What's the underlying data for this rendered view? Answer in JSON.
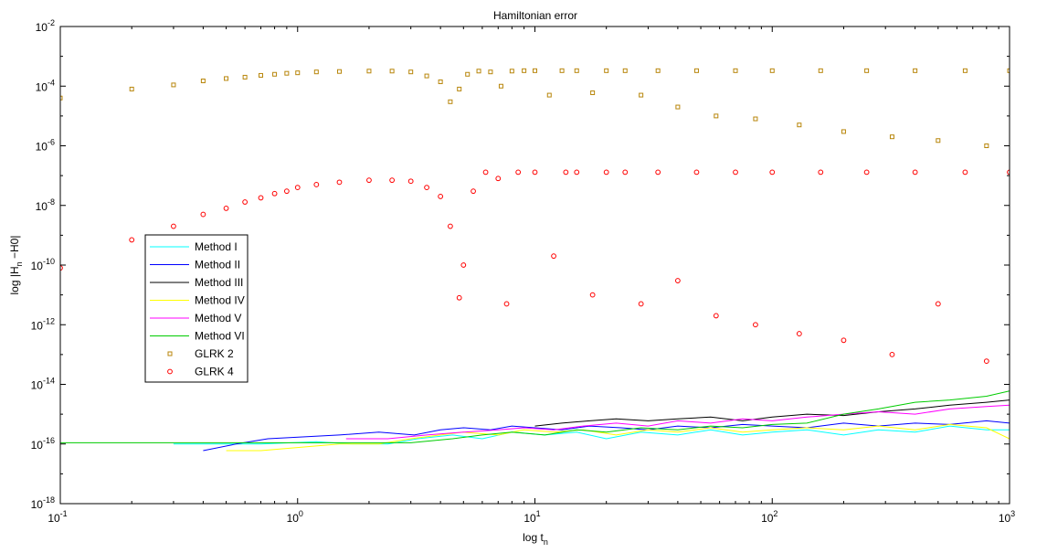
{
  "chart_data": {
    "type": "scatter",
    "title": "Hamiltonian error",
    "xlabel": {
      "base": "log t",
      "sub": "n"
    },
    "ylabel": {
      "pre": "log |H",
      "sub": "n",
      "post": " −H0|"
    },
    "xscale": "log",
    "yscale": "log",
    "xlim": [
      0.1,
      1000
    ],
    "ylim": [
      1e-18,
      0.01
    ],
    "grid": false,
    "legend_position": "left-middle",
    "x_ticks": [
      {
        "value": 0.1,
        "base": "10",
        "exp": "-1"
      },
      {
        "value": 1,
        "base": "10",
        "exp": "0"
      },
      {
        "value": 10,
        "base": "10",
        "exp": "1"
      },
      {
        "value": 100,
        "base": "10",
        "exp": "2"
      },
      {
        "value": 1000,
        "base": "10",
        "exp": "3"
      }
    ],
    "y_ticks": [
      {
        "value": 1e-18,
        "base": "10",
        "exp": "-18"
      },
      {
        "value": 1e-16,
        "base": "10",
        "exp": "-16"
      },
      {
        "value": 1e-14,
        "base": "10",
        "exp": "-14"
      },
      {
        "value": 1e-12,
        "base": "10",
        "exp": "-12"
      },
      {
        "value": 1e-10,
        "base": "10",
        "exp": "-10"
      },
      {
        "value": 1e-08,
        "base": "10",
        "exp": "-8"
      },
      {
        "value": 1e-06,
        "base": "10",
        "exp": "-6"
      },
      {
        "value": 0.0001,
        "base": "10",
        "exp": "-4"
      },
      {
        "value": 0.01,
        "base": "10",
        "exp": "-2"
      }
    ],
    "series": [
      {
        "name": "Method I",
        "kind": "line",
        "color": "#00ffff",
        "x": [
          0.3,
          0.45,
          0.7,
          1.2,
          1.7,
          2.4,
          3.2,
          4.5,
          6,
          8,
          11,
          15,
          20,
          28,
          40,
          55,
          75,
          100,
          140,
          200,
          280,
          400,
          560,
          800,
          1000
        ],
        "y": [
          1e-16,
          1e-16,
          1e-16,
          1.2e-16,
          1e-16,
          1e-16,
          1.5e-16,
          2e-16,
          1.5e-16,
          2.5e-16,
          2e-16,
          2.5e-16,
          1.5e-16,
          2.5e-16,
          2e-16,
          3e-16,
          2e-16,
          2.5e-16,
          3e-16,
          2e-16,
          3e-16,
          2.5e-16,
          4e-16,
          3e-16,
          3e-16
        ]
      },
      {
        "name": "Method II",
        "kind": "line",
        "color": "#0000ff",
        "x": [
          0.4,
          0.55,
          0.75,
          1.5,
          2.2,
          3.1,
          4,
          5,
          6.5,
          8,
          10,
          13,
          17,
          23,
          30,
          40,
          55,
          75,
          100,
          140,
          200,
          280,
          400,
          560,
          800,
          1000
        ],
        "y": [
          6e-17,
          1e-16,
          1.5e-16,
          2e-16,
          2.5e-16,
          2e-16,
          3e-16,
          3.5e-16,
          3e-16,
          4e-16,
          3.5e-16,
          3e-16,
          4e-16,
          3.5e-16,
          3e-16,
          4e-16,
          3.5e-16,
          4.5e-16,
          4e-16,
          3.5e-16,
          5e-16,
          4e-16,
          5e-16,
          4.5e-16,
          6e-16,
          5e-16
        ]
      },
      {
        "name": "Method III",
        "kind": "line",
        "color": "#000000",
        "x": [
          10,
          13,
          17,
          22,
          30,
          40,
          55,
          75,
          100,
          140,
          200,
          280,
          400,
          560,
          800,
          1000
        ],
        "y": [
          4e-16,
          5e-16,
          6e-16,
          7e-16,
          6e-16,
          7e-16,
          8e-16,
          6e-16,
          8e-16,
          1e-15,
          9e-16,
          1.2e-15,
          1.5e-15,
          2e-15,
          2.5e-15,
          3e-15
        ]
      },
      {
        "name": "Method IV",
        "kind": "line",
        "color": "#ffff00",
        "x": [
          0.5,
          0.6,
          0.7,
          1.5,
          2.2,
          3,
          4,
          5,
          7,
          9,
          12,
          16,
          22,
          30,
          40,
          55,
          75,
          100,
          140,
          200,
          280,
          400,
          560,
          800,
          1000
        ],
        "y": [
          6e-17,
          6e-17,
          6e-17,
          1e-16,
          1e-16,
          1.5e-16,
          2e-16,
          2.5e-16,
          2e-16,
          3e-16,
          2.5e-16,
          3e-16,
          2e-16,
          3e-16,
          2.5e-16,
          3.5e-16,
          2.5e-16,
          3e-16,
          3.5e-16,
          3e-16,
          4e-16,
          3e-16,
          4.5e-16,
          3.5e-16,
          1.5e-16
        ]
      },
      {
        "name": "Method V",
        "kind": "line",
        "color": "#ff00ff",
        "x": [
          1.6,
          2.4,
          3.5,
          5,
          7,
          9,
          12,
          16,
          22,
          30,
          40,
          55,
          75,
          100,
          140,
          200,
          280,
          400,
          560,
          800,
          1000
        ],
        "y": [
          1.5e-16,
          1.5e-16,
          2e-16,
          2.5e-16,
          3e-16,
          3.5e-16,
          3e-16,
          4e-16,
          5e-16,
          4e-16,
          6e-16,
          5e-16,
          7e-16,
          6e-16,
          8e-16,
          1e-15,
          1.2e-15,
          1e-15,
          1.5e-15,
          1.8e-15,
          2e-15
        ]
      },
      {
        "name": "Method VI",
        "kind": "line",
        "color": "#00cc00",
        "x": [
          0.1,
          1.4,
          2,
          3,
          4.5,
          6,
          8,
          11,
          15,
          20,
          28,
          40,
          55,
          75,
          100,
          140,
          200,
          280,
          400,
          560,
          800,
          1000
        ],
        "y": [
          1.1e-16,
          1.1e-16,
          1.1e-16,
          1.1e-16,
          1.5e-16,
          2e-16,
          2.5e-16,
          2e-16,
          3e-16,
          2.5e-16,
          3.5e-16,
          3e-16,
          4e-16,
          3.5e-16,
          4.5e-16,
          5e-16,
          1e-15,
          1.5e-15,
          2.5e-15,
          3e-15,
          4e-15,
          6e-15
        ]
      },
      {
        "name": "GLRK 2",
        "kind": "marker",
        "marker": "square",
        "color": "#b8860b",
        "x": [
          0.1,
          0.2,
          0.3,
          0.4,
          0.5,
          0.6,
          0.7,
          0.8,
          0.9,
          1.0,
          1.2,
          1.5,
          2.0,
          2.5,
          3.0,
          3.5,
          4.0,
          4.4,
          4.8,
          5.2,
          5.8,
          6.5,
          7.2,
          8.0,
          9.0,
          10,
          11.5,
          13,
          15,
          17.5,
          20,
          24,
          28,
          33,
          40,
          48,
          58,
          70,
          85,
          100,
          130,
          160,
          200,
          250,
          320,
          400,
          500,
          650,
          800,
          1000
        ],
        "y": [
          4e-05,
          8e-05,
          0.00011,
          0.00015,
          0.00018,
          0.0002,
          0.00023,
          0.00025,
          0.00027,
          0.00028,
          0.0003,
          0.00031,
          0.00032,
          0.00032,
          0.0003,
          0.00022,
          0.00014,
          3e-05,
          8e-05,
          0.00025,
          0.00032,
          0.0003,
          0.0001,
          0.00032,
          0.00033,
          0.00033,
          5e-05,
          0.00033,
          0.00033,
          6e-05,
          0.00033,
          0.00033,
          5e-05,
          0.00033,
          2e-05,
          0.00033,
          1e-05,
          0.00033,
          8e-06,
          0.00033,
          5e-06,
          0.00033,
          3e-06,
          0.00033,
          2e-06,
          0.00033,
          1.5e-06,
          0.00033,
          1e-06,
          0.00033
        ]
      },
      {
        "name": "GLRK 4",
        "kind": "marker",
        "marker": "circle",
        "color": "#ff0000",
        "x": [
          0.1,
          0.2,
          0.3,
          0.4,
          0.5,
          0.6,
          0.7,
          0.8,
          0.9,
          1.0,
          1.2,
          1.5,
          2.0,
          2.5,
          3.0,
          3.5,
          4.0,
          4.4,
          4.8,
          5.0,
          5.5,
          6.2,
          7.0,
          7.6,
          8.5,
          10,
          12,
          13.5,
          15,
          17.5,
          20,
          24,
          28,
          33,
          40,
          48,
          58,
          70,
          85,
          100,
          130,
          160,
          200,
          250,
          320,
          400,
          500,
          650,
          800,
          1000
        ],
        "y": [
          8e-11,
          7e-10,
          2e-09,
          5e-09,
          8e-09,
          1.3e-08,
          1.8e-08,
          2.5e-08,
          3e-08,
          4e-08,
          5e-08,
          6e-08,
          7e-08,
          7e-08,
          6.5e-08,
          4e-08,
          2e-08,
          2e-09,
          8e-12,
          1e-10,
          3e-08,
          1.3e-07,
          8e-08,
          5e-12,
          1.3e-07,
          1.3e-07,
          2e-10,
          1.3e-07,
          1.3e-07,
          1e-11,
          1.3e-07,
          1.3e-07,
          5e-12,
          1.3e-07,
          3e-11,
          1.3e-07,
          2e-12,
          1.3e-07,
          1e-12,
          1.3e-07,
          5e-13,
          1.3e-07,
          3e-13,
          1.3e-07,
          1e-13,
          1.3e-07,
          5e-12,
          1.3e-07,
          6e-14,
          1.3e-07
        ]
      }
    ]
  }
}
